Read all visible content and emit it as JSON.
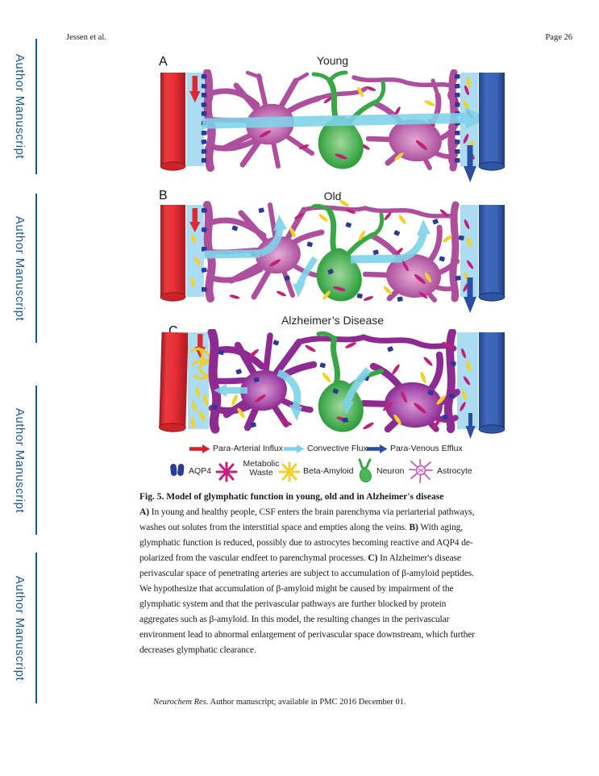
{
  "sidebar": {
    "color": "#1a5b8c",
    "items": [
      "Author Manuscript",
      "Author Manuscript",
      "Author Manuscript",
      "Author Manuscript"
    ]
  },
  "header": {
    "author": "Jessen et al.",
    "page": "Page 26"
  },
  "figure": {
    "panels": [
      {
        "label": "A",
        "title": "Young"
      },
      {
        "label": "B",
        "title": "Old"
      },
      {
        "label": "C",
        "title": "Alzheimer’s Disease"
      }
    ],
    "legend_flux": [
      {
        "label": "Para-Arterial Influx",
        "color": "#d6232a",
        "icon": "red-right-arrow-icon"
      },
      {
        "label": "Convective Flux",
        "color": "#7ed3ea",
        "icon": "cyan-right-arrow-icon"
      },
      {
        "label": "Para-Venous Efflux",
        "color": "#2b4ea2",
        "icon": "blue-right-arrow-icon"
      }
    ],
    "legend_markers": [
      {
        "label": "AQP4",
        "color": "#2b3a92",
        "icon": "aqp4-capsules-icon"
      },
      {
        "label": "Metabolic Waste",
        "color": "#c5207a",
        "icon": "magenta-starburst-icon"
      },
      {
        "label": "Beta-Amyloid",
        "color": "#f2cf2a",
        "icon": "yellow-starburst-icon"
      },
      {
        "label": "Neuron",
        "color": "#3fae49",
        "icon": "green-neuron-icon"
      },
      {
        "label": "Astrocyte",
        "color": "#c45cb0",
        "icon": "pink-astrocyte-icon"
      }
    ],
    "colors": {
      "artery_red": "#e62e35",
      "vein_blue": "#3a62b5",
      "csf_space": "#abdcf2",
      "astrocyte_young": "#ae4f9d",
      "astrocyte_ad": "#8e2b93",
      "neuron_green": "#3fae49",
      "aqp4_navy": "#2b3a92",
      "waste_magenta": "#c31f77",
      "amyloid_yellow": "#f2cf2a",
      "flux_cyan": "#7ed3ea"
    }
  },
  "caption": {
    "title": "Fig. 5. Model of glymphatic function in young, old and in Alzheimer's disease",
    "lines": [
      [
        {
          "t": "A)",
          "b": true
        },
        {
          "t": " In young and healthy people, CSF enters the brain parenchyma via periarterial pathways,"
        }
      ],
      [
        {
          "t": "washes out solutes from the interstitial space and empties along the veins. "
        },
        {
          "t": "B)",
          "b": true
        },
        {
          "t": " With aging,"
        }
      ],
      [
        {
          "t": "glymphatic function is reduced, possibly due to astrocytes becoming reactive and AQP4 de-"
        }
      ],
      [
        {
          "t": "polarized from the vascular endfeet to parenchymal processes. "
        },
        {
          "t": "C)",
          "b": true
        },
        {
          "t": " In Alzheimer's disease"
        }
      ],
      [
        {
          "t": "perivascular space of penetrating arteries are subject to accumulation of β-amyloid peptides."
        }
      ],
      [
        {
          "t": "We hypothesize that accumulation of β-amyloid might be caused by impairment of the"
        }
      ],
      [
        {
          "t": "glymphatic system and that the perivascular pathways are further blocked by protein"
        }
      ],
      [
        {
          "t": "aggregates such as β-amyloid. In this model, the resulting changes in the perivascular"
        }
      ],
      [
        {
          "t": "environment lead to abnormal enlargement of perivascular space downstream, which further"
        }
      ],
      [
        {
          "t": "decreases glymphatic clearance."
        }
      ]
    ]
  },
  "footer": {
    "journal": "Neurochem Res.",
    "rest": " Author manuscript; available in PMC 2016 December 01."
  }
}
